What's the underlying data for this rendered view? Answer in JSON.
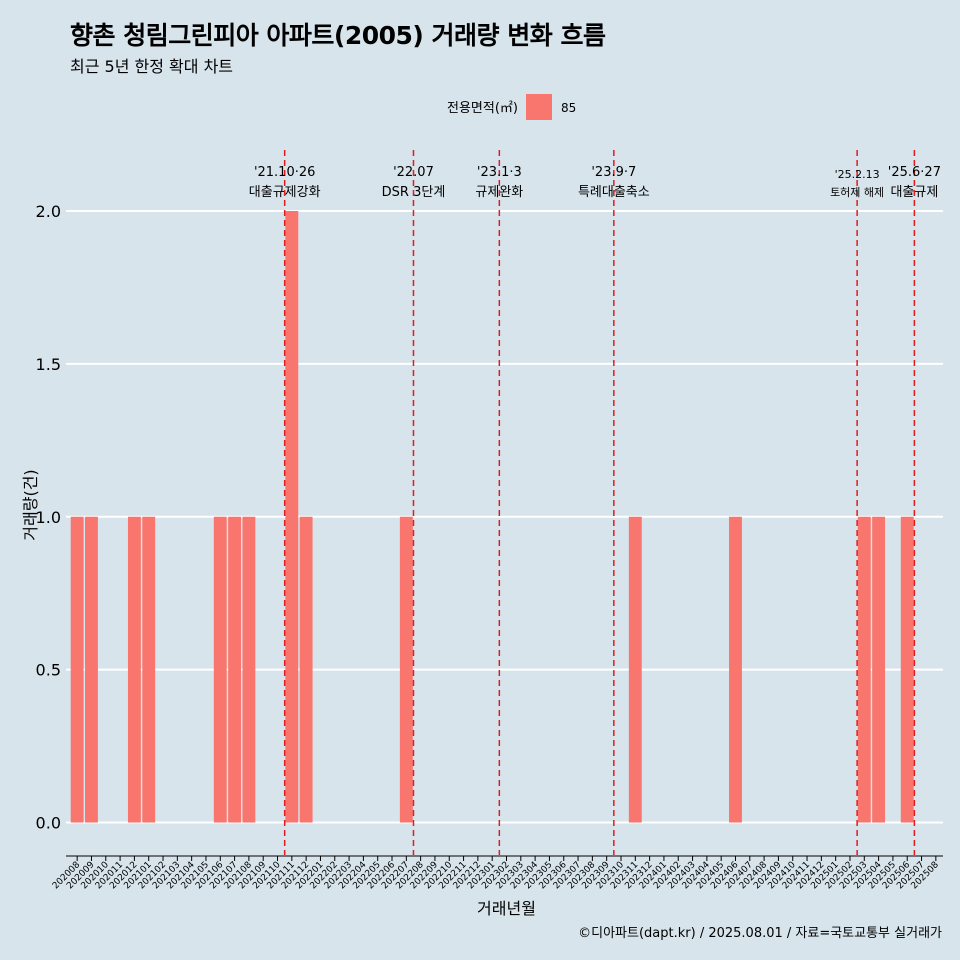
{
  "header": {
    "title": "향촌 청림그린피아 아파트(2005) 거래량 변화 흐름",
    "subtitle": "최근 5년 한정 확대 차트"
  },
  "caption": "©디아파트(dapt.kr) / 2025.08.01 / 자료=국토교통부 실거래가",
  "colors": {
    "background": "#d7e4ec",
    "bar": "#f8766d",
    "event_line": "#e41a1c",
    "grid": "#ffffff"
  },
  "chart_data": {
    "type": "bar",
    "xlabel": "거래년월",
    "ylabel": "거래량(건)",
    "ylim": [
      0,
      2
    ],
    "yticks": [
      0.0,
      0.5,
      1.0,
      1.5,
      2.0
    ],
    "grid": true,
    "legend": {
      "title": "전용면적(㎡)",
      "position": "top",
      "entries": [
        "85"
      ]
    },
    "categories": [
      "202008",
      "202009",
      "202010",
      "202011",
      "202012",
      "202101",
      "202102",
      "202103",
      "202104",
      "202105",
      "202106",
      "202107",
      "202108",
      "202109",
      "202110",
      "202111",
      "202112",
      "202201",
      "202202",
      "202203",
      "202204",
      "202205",
      "202206",
      "202207",
      "202208",
      "202209",
      "202210",
      "202211",
      "202212",
      "202301",
      "202302",
      "202303",
      "202304",
      "202305",
      "202306",
      "202307",
      "202308",
      "202309",
      "202310",
      "202311",
      "202312",
      "202401",
      "202402",
      "202403",
      "202404",
      "202405",
      "202406",
      "202407",
      "202408",
      "202409",
      "202410",
      "202411",
      "202412",
      "202501",
      "202502",
      "202503",
      "202504",
      "202505",
      "202506",
      "202507",
      "202508"
    ],
    "series": [
      {
        "name": "85",
        "values": [
          1,
          1,
          0,
          0,
          1,
          1,
          0,
          0,
          0,
          0,
          1,
          1,
          1,
          0,
          0,
          2,
          1,
          0,
          0,
          0,
          0,
          0,
          0,
          1,
          0,
          0,
          0,
          0,
          0,
          0,
          0,
          0,
          0,
          0,
          0,
          0,
          0,
          0,
          0,
          1,
          0,
          0,
          0,
          0,
          0,
          0,
          1,
          0,
          0,
          0,
          0,
          0,
          0,
          0,
          0,
          1,
          1,
          0,
          1,
          0,
          0
        ]
      }
    ],
    "events": [
      {
        "date_label": "'21.10·26",
        "text": "대출규제강화",
        "after_category": "202110"
      },
      {
        "date_label": "'22.07",
        "text": "DSR 3단계",
        "after_category": "202207"
      },
      {
        "date_label": "'23.1·3",
        "text": "규제완화",
        "after_category": "202301"
      },
      {
        "date_label": "'23.9·7",
        "text": "특례대출축소",
        "after_category": "202309"
      },
      {
        "date_label": "'25.2.13",
        "text": "토허제 해제",
        "after_category": "202502"
      },
      {
        "date_label": "'25.6·27",
        "text": "대출규제",
        "after_category": "202506"
      }
    ]
  }
}
